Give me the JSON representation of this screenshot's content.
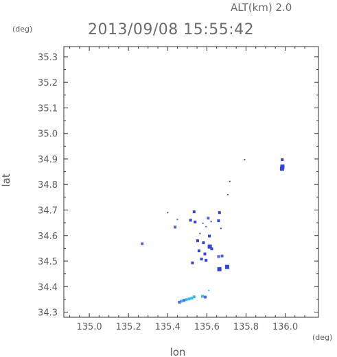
{
  "header": {
    "altitude_label": "ALT(km) 2.0",
    "timestamp": "2013/09/08 15:55:42"
  },
  "chart_data": {
    "type": "scatter",
    "xlabel": "lon",
    "ylabel": "lat",
    "x_unit": "(deg)",
    "y_unit": "(deg)",
    "xlim": [
      134.87,
      136.17
    ],
    "ylim": [
      34.28,
      35.34
    ],
    "x_ticks": [
      135.0,
      135.2,
      135.4,
      135.6,
      135.8,
      136.0
    ],
    "x_tick_labels": [
      "135.0",
      "135.2",
      "135.4",
      "135.6",
      "135.8",
      "136.0"
    ],
    "y_ticks": [
      34.3,
      34.4,
      34.5,
      34.6,
      34.7,
      34.8,
      34.9,
      35.0,
      35.1,
      35.2,
      35.3
    ],
    "y_tick_labels": [
      "34.3",
      "34.4",
      "34.5",
      "34.6",
      "34.7",
      "34.8",
      "34.9",
      "35.0",
      "35.1",
      "35.2",
      "35.3"
    ],
    "grid": false,
    "colors": {
      "echo_strong": "#3344dd",
      "echo_medium": "#4a63ee",
      "echo_weak": "#33bbee",
      "frame": "#333333"
    },
    "points": [
      {
        "lon": 135.986,
        "lat": 34.87,
        "level": "strong",
        "size": 3
      },
      {
        "lon": 135.984,
        "lat": 34.862,
        "level": "strong",
        "size": 3
      },
      {
        "lon": 135.985,
        "lat": 34.897,
        "level": "strong",
        "size": 2
      },
      {
        "lon": 135.793,
        "lat": 34.897,
        "level": "strong",
        "size": 1
      },
      {
        "lon": 135.717,
        "lat": 34.812,
        "level": "strong",
        "size": 1
      },
      {
        "lon": 135.707,
        "lat": 34.76,
        "level": "strong",
        "size": 1
      },
      {
        "lon": 135.4,
        "lat": 34.69,
        "level": "strong",
        "size": 1
      },
      {
        "lon": 135.535,
        "lat": 34.693,
        "level": "strong",
        "size": 2
      },
      {
        "lon": 135.665,
        "lat": 34.69,
        "level": "strong",
        "size": 2
      },
      {
        "lon": 135.607,
        "lat": 34.668,
        "level": "medium",
        "size": 2
      },
      {
        "lon": 135.45,
        "lat": 34.663,
        "level": "medium",
        "size": 1
      },
      {
        "lon": 135.517,
        "lat": 34.66,
        "level": "strong",
        "size": 2
      },
      {
        "lon": 135.54,
        "lat": 34.653,
        "level": "strong",
        "size": 2
      },
      {
        "lon": 135.58,
        "lat": 34.648,
        "level": "medium",
        "size": 1
      },
      {
        "lon": 135.622,
        "lat": 34.655,
        "level": "strong",
        "size": 1
      },
      {
        "lon": 135.66,
        "lat": 34.658,
        "level": "strong",
        "size": 2
      },
      {
        "lon": 135.438,
        "lat": 34.633,
        "level": "medium",
        "size": 2
      },
      {
        "lon": 135.596,
        "lat": 34.635,
        "level": "medium",
        "size": 1
      },
      {
        "lon": 135.672,
        "lat": 34.628,
        "level": "strong",
        "size": 1
      },
      {
        "lon": 135.565,
        "lat": 34.608,
        "level": "strong",
        "size": 1
      },
      {
        "lon": 135.613,
        "lat": 34.598,
        "level": "strong",
        "size": 2
      },
      {
        "lon": 135.27,
        "lat": 34.568,
        "level": "medium",
        "size": 2
      },
      {
        "lon": 135.553,
        "lat": 34.58,
        "level": "strong",
        "size": 2
      },
      {
        "lon": 135.583,
        "lat": 34.572,
        "level": "strong",
        "size": 2
      },
      {
        "lon": 135.615,
        "lat": 34.557,
        "level": "strong",
        "size": 3
      },
      {
        "lon": 135.625,
        "lat": 34.548,
        "level": "strong",
        "size": 2
      },
      {
        "lon": 135.56,
        "lat": 34.54,
        "level": "strong",
        "size": 2
      },
      {
        "lon": 135.59,
        "lat": 34.528,
        "level": "strong",
        "size": 2
      },
      {
        "lon": 135.66,
        "lat": 34.518,
        "level": "medium",
        "size": 2
      },
      {
        "lon": 135.678,
        "lat": 34.52,
        "level": "medium",
        "size": 2
      },
      {
        "lon": 135.573,
        "lat": 34.508,
        "level": "strong",
        "size": 2
      },
      {
        "lon": 135.596,
        "lat": 34.503,
        "level": "strong",
        "size": 2
      },
      {
        "lon": 135.527,
        "lat": 34.493,
        "level": "strong",
        "size": 2
      },
      {
        "lon": 135.704,
        "lat": 34.477,
        "level": "strong",
        "size": 3
      },
      {
        "lon": 135.664,
        "lat": 34.468,
        "level": "strong",
        "size": 3
      },
      {
        "lon": 135.61,
        "lat": 34.385,
        "level": "weak",
        "size": 1
      },
      {
        "lon": 135.578,
        "lat": 34.362,
        "level": "weak",
        "size": 2
      },
      {
        "lon": 135.592,
        "lat": 34.359,
        "level": "medium",
        "size": 2
      },
      {
        "lon": 135.535,
        "lat": 34.36,
        "level": "weak",
        "size": 2
      },
      {
        "lon": 135.524,
        "lat": 34.355,
        "level": "weak",
        "size": 2
      },
      {
        "lon": 135.51,
        "lat": 34.352,
        "level": "weak",
        "size": 2
      },
      {
        "lon": 135.496,
        "lat": 34.349,
        "level": "weak",
        "size": 2
      },
      {
        "lon": 135.483,
        "lat": 34.346,
        "level": "medium",
        "size": 2
      },
      {
        "lon": 135.47,
        "lat": 34.343,
        "level": "weak",
        "size": 2
      },
      {
        "lon": 135.46,
        "lat": 34.339,
        "level": "medium",
        "size": 2
      }
    ]
  }
}
